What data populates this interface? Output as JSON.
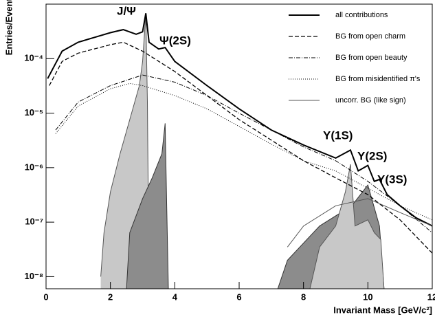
{
  "chart_data": {
    "type": "line",
    "log_y": true,
    "x_label": "Invariant Mass [GeV/c²]",
    "y_label": "Entries/Events",
    "xlim": [
      0,
      12
    ],
    "xticks": [
      0,
      2,
      4,
      6,
      8,
      10,
      12
    ],
    "ylim": [
      6e-09,
      0.001
    ],
    "yticks": [
      {
        "value": 1e-08,
        "label": "10⁻⁸"
      },
      {
        "value": 1e-07,
        "label": "10⁻⁷"
      },
      {
        "value": 1e-06,
        "label": "10⁻⁶"
      },
      {
        "value": 1e-05,
        "label": "10⁻⁵"
      },
      {
        "value": 0.0001,
        "label": "10⁻⁴"
      }
    ],
    "legend": "top-right",
    "annotations": [
      "J/Ψ",
      "Ψ(2S)",
      "Υ(1S)",
      "Υ(2S)",
      "Υ(3S)"
    ],
    "series": [
      {
        "fill": "#c8c8c8",
        "color": "#555555",
        "x": [
          1.7,
          1.8,
          2.0,
          2.3,
          2.6,
          2.9,
          3.0,
          3.1,
          3.15,
          3.2
        ],
        "values": [
          1e-08,
          6.4e-08,
          3.6e-07,
          1.8e-06,
          7.6e-06,
          3.2e-05,
          8.9e-05,
          0.00068,
          1.6e-05,
          6e-09
        ]
      },
      {
        "fill": "#8c8c8c",
        "color": "#333333",
        "x": [
          2.5,
          2.6,
          3.0,
          3.3,
          3.6,
          3.7,
          3.75,
          3.8
        ],
        "values": [
          6e-09,
          6.4e-08,
          2.7e-07,
          6.5e-07,
          1.8e-06,
          6.5e-06,
          2e-07,
          6e-09
        ]
      },
      {
        "fill": "#8c8c8c",
        "color": "#333333",
        "x": [
          7.2,
          7.5,
          8.5,
          9.5,
          10.0,
          10.36,
          10.5
        ],
        "values": [
          6e-09,
          2e-08,
          8.5e-08,
          2e-07,
          4.8e-07,
          8.5e-08,
          6e-09
        ]
      },
      {
        "fill": "#c8c8c8",
        "color": "#555555",
        "x": [
          8.2,
          8.5,
          9.0,
          9.3,
          9.46,
          9.6,
          10.0,
          10.2,
          10.4,
          10.5
        ],
        "values": [
          6e-09,
          3.5e-08,
          8.5e-08,
          3.6e-07,
          1.15e-06,
          8.5e-08,
          1.1e-07,
          6.4e-08,
          4.8e-08,
          6e-09
        ]
      },
      {
        "name": "all contributions",
        "color": "#000000",
        "line_style": "solid",
        "width": 2,
        "x": [
          0.05,
          0.5,
          1,
          1.5,
          2,
          2.4,
          2.8,
          3.0,
          3.1,
          3.2,
          3.5,
          3.7,
          4,
          5,
          6,
          7,
          8,
          9,
          9.46,
          9.7,
          10.0,
          10.2,
          10.36,
          10.6,
          11,
          11.5,
          12
        ],
        "values": [
          4.3e-05,
          0.000137,
          0.0002,
          0.000245,
          0.0003,
          0.00034,
          0.00028,
          0.00031,
          0.00068,
          0.0002,
          0.00015,
          0.00016,
          8.9e-05,
          3.2e-05,
          1.2e-05,
          4.9e-06,
          2.6e-06,
          1.5e-06,
          2.1e-06,
          8.7e-07,
          1.1e-06,
          5.6e-07,
          6.1e-07,
          3.2e-07,
          2e-07,
          1.2e-07,
          8.5e-08
        ]
      },
      {
        "name": "BG from open charm",
        "color": "#000000",
        "line_style": "dashed",
        "width": 1.3,
        "x": [
          0.1,
          0.5,
          1,
          2,
          2.4,
          3,
          4,
          5,
          6,
          7,
          8,
          9,
          10,
          11,
          12
        ],
        "values": [
          3.2e-05,
          8.9e-05,
          0.000126,
          0.00018,
          0.0002,
          0.000137,
          5.8e-05,
          2.1e-05,
          7.6e-06,
          3.2e-06,
          1.34e-06,
          6.5e-07,
          3.2e-07,
          1.1e-07,
          2.7e-08
        ]
      },
      {
        "name": "BG from open beauty",
        "color": "#000000",
        "line_style": "dashdot",
        "width": 1,
        "x": [
          0.3,
          1,
          2,
          3,
          4,
          5,
          6,
          7,
          8,
          9,
          10,
          11,
          12
        ],
        "values": [
          4.9e-06,
          1.6e-05,
          3.2e-05,
          5e-05,
          3.7e-05,
          2.1e-05,
          1e-05,
          4.9e-06,
          2.4e-06,
          1.34e-06,
          5.6e-07,
          2e-07,
          6.4e-08
        ]
      },
      {
        "name": "BG from misidentified π's",
        "color": "#000000",
        "line_style": "dotted",
        "width": 1,
        "x": [
          0.3,
          1,
          2,
          2.6,
          3,
          4,
          5,
          6,
          7,
          8,
          9,
          10,
          11,
          12
        ],
        "values": [
          4.2e-06,
          1.35e-05,
          2.8e-05,
          3.5e-05,
          3.2e-05,
          2.1e-05,
          1.2e-05,
          5.7e-06,
          2.7e-06,
          1.34e-06,
          8.7e-07,
          4.2e-07,
          2e-07,
          1.1e-07
        ]
      },
      {
        "name": "uncorr. BG (like sign)",
        "color": "#555555",
        "line_style": "solid",
        "width": 1,
        "x": [
          7.5,
          8,
          9,
          10,
          11,
          12
        ],
        "values": [
          3.5e-08,
          8.5e-08,
          2e-07,
          2.7e-07,
          1.5e-07,
          8.5e-08
        ]
      }
    ]
  }
}
